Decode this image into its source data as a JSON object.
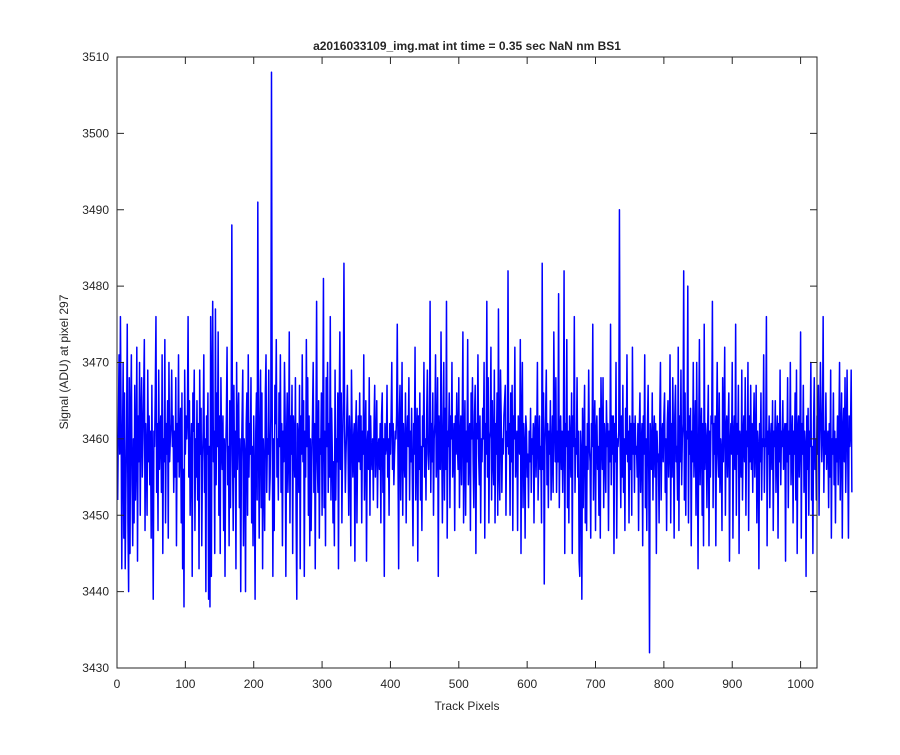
{
  "chart_data": {
    "type": "line",
    "title": "a2016033109_img.mat int time = 0.35 sec  NaN nm BS1",
    "xlabel": "Track Pixels",
    "ylabel": "Signal (ADU) at pixel 297",
    "xlim": [
      0,
      1024
    ],
    "ylim": [
      3430,
      3510
    ],
    "xticks": [
      0,
      100,
      200,
      300,
      400,
      500,
      600,
      700,
      800,
      900,
      1000
    ],
    "yticks": [
      3430,
      3440,
      3450,
      3460,
      3470,
      3480,
      3490,
      3500,
      3510
    ],
    "grid": false,
    "legend": "none",
    "series": [
      {
        "color": "#0000ff",
        "x_start": 1,
        "x_step": 1,
        "values": [
          3452,
          3462,
          3471,
          3458,
          3476,
          3463,
          3443,
          3459,
          3470,
          3447,
          3466,
          3443,
          3453,
          3461,
          3475,
          3449,
          3440,
          3468,
          3445,
          3463,
          3471,
          3454,
          3446,
          3460,
          3449,
          3467,
          3452,
          3458,
          3472,
          3444,
          3463,
          3457,
          3470,
          3450,
          3463,
          3468,
          3455,
          3460,
          3466,
          3473,
          3448,
          3462,
          3458,
          3450,
          3469,
          3457,
          3463,
          3454,
          3461,
          3447,
          3467,
          3454,
          3439,
          3461,
          3459,
          3466,
          3476,
          3453,
          3462,
          3448,
          3469,
          3456,
          3460,
          3463,
          3453,
          3471,
          3445,
          3460,
          3457,
          3473,
          3449,
          3462,
          3458,
          3465,
          3447,
          3470,
          3457,
          3460,
          3462,
          3469,
          3459,
          3463,
          3453,
          3461,
          3455,
          3468,
          3446,
          3462,
          3457,
          3471,
          3455,
          3459,
          3464,
          3449,
          3466,
          3443,
          3456,
          3438,
          3469,
          3458,
          3463,
          3460,
          3463,
          3476,
          3455,
          3465,
          3450,
          3458,
          3462,
          3442,
          3466,
          3461,
          3469,
          3448,
          3460,
          3455,
          3465,
          3452,
          3462,
          3443,
          3469,
          3458,
          3464,
          3446,
          3457,
          3461,
          3471,
          3453,
          3460,
          3440,
          3463,
          3458,
          3466,
          3439,
          3459,
          3438,
          3476,
          3442,
          3467,
          3478,
          3457,
          3461,
          3445,
          3477,
          3454,
          3466,
          3459,
          3474,
          3450,
          3463,
          3445,
          3468,
          3459,
          3456,
          3463,
          3448,
          3460,
          3442,
          3458,
          3463,
          3472,
          3454,
          3459,
          3446,
          3465,
          3451,
          3462,
          3488,
          3458,
          3448,
          3467,
          3455,
          3461,
          3443,
          3470,
          3456,
          3462,
          3466,
          3451,
          3460,
          3440,
          3457,
          3463,
          3469,
          3446,
          3460,
          3458,
          3440,
          3462,
          3466,
          3450,
          3471,
          3455,
          3462,
          3458,
          3468,
          3449,
          3459,
          3446,
          3463,
          3455,
          3439,
          3461,
          3466,
          3452,
          3491,
          3460,
          3447,
          3462,
          3469,
          3451,
          3466,
          3443,
          3460,
          3456,
          3448,
          3466,
          3471,
          3453,
          3460,
          3458,
          3469,
          3452,
          3455,
          3463,
          3508,
          3465,
          3442,
          3460,
          3448,
          3467,
          3462,
          3473,
          3455,
          3460,
          3452,
          3466,
          3459,
          3471,
          3453,
          3462,
          3446,
          3461,
          3457,
          3470,
          3463,
          3442,
          3460,
          3466,
          3453,
          3458,
          3474,
          3449,
          3463,
          3458,
          3467,
          3445,
          3463,
          3460,
          3455,
          3468,
          3450,
          3439,
          3462,
          3460,
          3453,
          3467,
          3443,
          3463,
          3458,
          3471,
          3457,
          3465,
          3442,
          3461,
          3455,
          3473,
          3459,
          3468,
          3450,
          3463,
          3446,
          3460,
          3448,
          3457,
          3463,
          3470,
          3453,
          3462,
          3443,
          3461,
          3478,
          3457,
          3453,
          3465,
          3447,
          3460,
          3458,
          3466,
          3450,
          3462,
          3481,
          3451,
          3461,
          3446,
          3468,
          3459,
          3470,
          3453,
          3462,
          3455,
          3476,
          3452,
          3464,
          3458,
          3449,
          3457,
          3446,
          3469,
          3452,
          3460,
          3457,
          3466,
          3443,
          3463,
          3474,
          3456,
          3466,
          3449,
          3459,
          3465,
          3483,
          3461,
          3453,
          3458,
          3462,
          3467,
          3459,
          3450,
          3463,
          3459,
          3446,
          3469,
          3461,
          3455,
          3460,
          3462,
          3444,
          3461,
          3465,
          3449,
          3459,
          3463,
          3457,
          3466,
          3456,
          3463,
          3449,
          3461,
          3458,
          3471,
          3452,
          3460,
          3465,
          3444,
          3459,
          3461,
          3456,
          3468,
          3450,
          3463,
          3458,
          3456,
          3460,
          3452,
          3462,
          3467,
          3455,
          3459,
          3465,
          3451,
          3459,
          3460,
          3456,
          3462,
          3449,
          3463,
          3466,
          3453,
          3460,
          3442,
          3462,
          3458,
          3459,
          3467,
          3455,
          3460,
          3450,
          3462,
          3458,
          3463,
          3470,
          3456,
          3462,
          3454,
          3458,
          3461,
          3460,
          3463,
          3475,
          3458,
          3443,
          3463,
          3467,
          3452,
          3460,
          3470,
          3450,
          3462,
          3458,
          3455,
          3466,
          3449,
          3460,
          3463,
          3459,
          3468,
          3452,
          3461,
          3457,
          3464,
          3455,
          3446,
          3462,
          3458,
          3472,
          3452,
          3460,
          3464,
          3444,
          3463,
          3456,
          3466,
          3452,
          3459,
          3448,
          3463,
          3459,
          3470,
          3455,
          3460,
          3452,
          3463,
          3469,
          3458,
          3456,
          3460,
          3478,
          3453,
          3462,
          3457,
          3466,
          3450,
          3460,
          3462,
          3471,
          3455,
          3459,
          3468,
          3442,
          3463,
          3457,
          3456,
          3474,
          3460,
          3449,
          3461,
          3470,
          3452,
          3464,
          3456,
          3478,
          3447,
          3461,
          3459,
          3466,
          3451,
          3463,
          3460,
          3470,
          3455,
          3458,
          3462,
          3448,
          3463,
          3458,
          3466,
          3459,
          3456,
          3468,
          3451,
          3460,
          3463,
          3454,
          3462,
          3474,
          3449,
          3459,
          3465,
          3450,
          3461,
          3457,
          3473,
          3454,
          3460,
          3462,
          3448,
          3466,
          3460,
          3468,
          3457,
          3451,
          3463,
          3467,
          3445,
          3462,
          3460,
          3471,
          3458,
          3454,
          3463,
          3449,
          3460,
          3457,
          3464,
          3460,
          3470,
          3447,
          3462,
          3458,
          3478,
          3455,
          3468,
          3449,
          3460,
          3461,
          3472,
          3452,
          3465,
          3458,
          3454,
          3469,
          3449,
          3462,
          3458,
          3466,
          3450,
          3477,
          3456,
          3452,
          3469,
          3463,
          3453,
          3460,
          3458,
          3463,
          3465,
          3467,
          3450,
          3461,
          3459,
          3482,
          3458,
          3462,
          3450,
          3466,
          3457,
          3467,
          3448,
          3463,
          3460,
          3472,
          3455,
          3459,
          3461,
          3448,
          3463,
          3460,
          3458,
          3473,
          3445,
          3462,
          3470,
          3451,
          3462,
          3459,
          3447,
          3463,
          3461,
          3455,
          3458,
          3451,
          3461,
          3457,
          3464,
          3453,
          3460,
          3458,
          3462,
          3449,
          3461,
          3463,
          3455,
          3460,
          3470,
          3452,
          3458,
          3463,
          3456,
          3459,
          3449,
          3483,
          3456,
          3466,
          3441,
          3459,
          3463,
          3469,
          3454,
          3462,
          3451,
          3461,
          3458,
          3465,
          3452,
          3458,
          3463,
          3453,
          3474,
          3462,
          3457,
          3468,
          3453,
          3461,
          3457,
          3479,
          3451,
          3460,
          3463,
          3456,
          3461,
          3453,
          3460,
          3482,
          3445,
          3462,
          3459,
          3473,
          3451,
          3461,
          3449,
          3463,
          3459,
          3455,
          3466,
          3445,
          3463,
          3459,
          3476,
          3453,
          3460,
          3458,
          3468,
          3455,
          3461,
          3444,
          3442,
          3461,
          3458,
          3439,
          3464,
          3451,
          3460,
          3467,
          3449,
          3459,
          3448,
          3462,
          3456,
          3469,
          3459,
          3457,
          3447,
          3462,
          3459,
          3475,
          3452,
          3461,
          3465,
          3448,
          3461,
          3463,
          3456,
          3459,
          3450,
          3464,
          3447,
          3468,
          3460,
          3456,
          3468,
          3451,
          3462,
          3459,
          3453,
          3465,
          3459,
          3462,
          3448,
          3461,
          3457,
          3475,
          3454,
          3463,
          3458,
          3463,
          3445,
          3462,
          3457,
          3470,
          3447,
          3460,
          3459,
          3461,
          3490,
          3459,
          3451,
          3463,
          3455,
          3467,
          3453,
          3460,
          3448,
          3464,
          3458,
          3471,
          3457,
          3461,
          3449,
          3463,
          3456,
          3462,
          3450,
          3472,
          3458,
          3462,
          3453,
          3463,
          3458,
          3459,
          3455,
          3462,
          3448,
          3461,
          3466,
          3453,
          3459,
          3462,
          3446,
          3463,
          3458,
          3471,
          3451,
          3460,
          3448,
          3462,
          3467,
          3454,
          3432,
          3462,
          3459,
          3456,
          3466,
          3452,
          3460,
          3463,
          3455,
          3462,
          3445,
          3461,
          3457,
          3458,
          3449,
          3463,
          3470,
          3452,
          3460,
          3462,
          3457,
          3463,
          3466,
          3453,
          3460,
          3448,
          3462,
          3465,
          3455,
          3459,
          3471,
          3449,
          3462,
          3455,
          3468,
          3460,
          3447,
          3463,
          3467,
          3457,
          3459,
          3452,
          3472,
          3448,
          3463,
          3457,
          3469,
          3454,
          3460,
          3462,
          3482,
          3452,
          3466,
          3450,
          3461,
          3460,
          3480,
          3449,
          3463,
          3458,
          3464,
          3446,
          3461,
          3457,
          3470,
          3455,
          3459,
          3465,
          3450,
          3470,
          3458,
          3443,
          3461,
          3473,
          3454,
          3460,
          3464,
          3450,
          3462,
          3446,
          3475,
          3456,
          3462,
          3460,
          3451,
          3461,
          3467,
          3446,
          3461,
          3455,
          3463,
          3462,
          3478,
          3451,
          3462,
          3458,
          3463,
          3446,
          3461,
          3470,
          3458,
          3455,
          3466,
          3453,
          3460,
          3458,
          3448,
          3468,
          3457,
          3462,
          3472,
          3450,
          3461,
          3463,
          3455,
          3461,
          3466,
          3444,
          3459,
          3462,
          3458,
          3470,
          3447,
          3460,
          3463,
          3456,
          3475,
          3450,
          3462,
          3458,
          3467,
          3445,
          3461,
          3459,
          3455,
          3469,
          3452,
          3460,
          3463,
          3457,
          3468,
          3450,
          3461,
          3459,
          3470,
          3448,
          3463,
          3457,
          3467,
          3456,
          3462,
          3453,
          3461,
          3466,
          3455,
          3460,
          3467,
          3449,
          3461,
          3459,
          3443,
          3462,
          3457,
          3466,
          3452,
          3460,
          3459,
          3471,
          3453,
          3460,
          3459,
          3476,
          3446,
          3461,
          3458,
          3463,
          3451,
          3460,
          3462,
          3456,
          3465,
          3448,
          3461,
          3459,
          3465,
          3453,
          3460,
          3463,
          3447,
          3462,
          3457,
          3469,
          3454,
          3461,
          3459,
          3465,
          3456,
          3460,
          3462,
          3444,
          3462,
          3457,
          3468,
          3451,
          3461,
          3458,
          3470,
          3454,
          3459,
          3463,
          3449,
          3461,
          3458,
          3466,
          3452,
          3469,
          3445,
          3461,
          3463,
          3455,
          3460,
          3474,
          3447,
          3462,
          3458,
          3467,
          3453,
          3461,
          3459,
          3442,
          3463,
          3456,
          3464,
          3450,
          3461,
          3459,
          3470,
          3452,
          3459,
          3445,
          3462,
          3468,
          3456,
          3460,
          3452,
          3463,
          3458,
          3467,
          3450,
          3460,
          3470,
          3463,
          3457,
          3461,
          3476,
          3453,
          3461,
          3458,
          3466,
          3456,
          3460,
          3461,
          3451,
          3462,
          3455,
          3469,
          3447,
          3460,
          3458,
          3466,
          3454,
          3461,
          3449,
          3460,
          3457,
          3463,
          3454,
          3461,
          3470,
          3452,
          3460,
          3466,
          3447,
          3461,
          3464,
          3457,
          3468,
          3453,
          3460,
          3469,
          3458,
          3447,
          3463,
          3459,
          3461,
          3469,
          3453
        ]
      }
    ]
  }
}
